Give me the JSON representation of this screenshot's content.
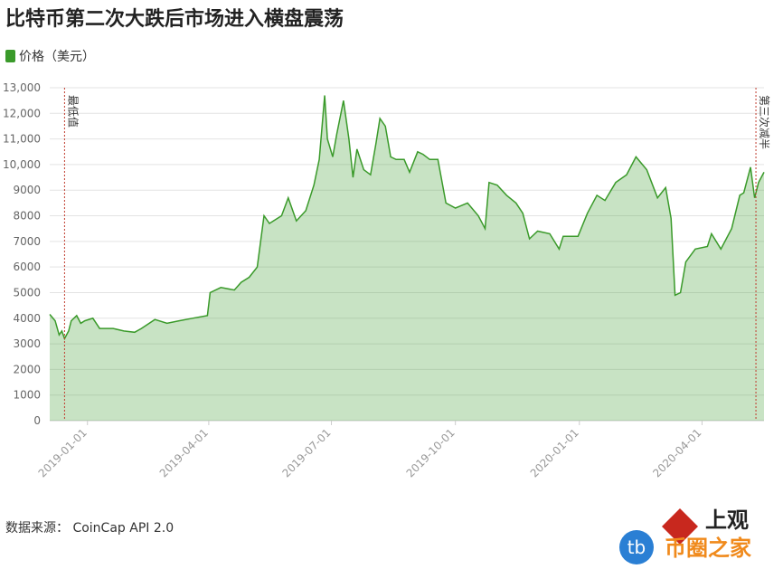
{
  "chart_data": {
    "type": "area",
    "title": "比特币第二次大跌后市场进入横盘震荡",
    "series": [
      {
        "name": "价格（美元）",
        "color": "#3a9a2a",
        "x": [
          "2018-12-04",
          "2018-12-08",
          "2018-12-11",
          "2018-12-13",
          "2018-12-15",
          "2018-12-18",
          "2018-12-20",
          "2018-12-24",
          "2018-12-27",
          "2018-12-30",
          "2019-01-05",
          "2019-01-10",
          "2019-01-20",
          "2019-01-28",
          "2019-02-05",
          "2019-02-10",
          "2019-02-20",
          "2019-03-01",
          "2019-03-10",
          "2019-03-20",
          "2019-03-31",
          "2019-04-02",
          "2019-04-10",
          "2019-04-20",
          "2019-04-25",
          "2019-05-01",
          "2019-05-07",
          "2019-05-12",
          "2019-05-16",
          "2019-05-25",
          "2019-05-30",
          "2019-06-05",
          "2019-06-12",
          "2019-06-18",
          "2019-06-22",
          "2019-06-26",
          "2019-06-28",
          "2019-07-02",
          "2019-07-05",
          "2019-07-10",
          "2019-07-14",
          "2019-07-17",
          "2019-07-20",
          "2019-07-25",
          "2019-07-30",
          "2019-08-03",
          "2019-08-06",
          "2019-08-10",
          "2019-08-14",
          "2019-08-18",
          "2019-08-24",
          "2019-08-28",
          "2019-09-03",
          "2019-09-07",
          "2019-09-12",
          "2019-09-18",
          "2019-09-24",
          "2019-10-01",
          "2019-10-10",
          "2019-10-18",
          "2019-10-23",
          "2019-10-26",
          "2019-11-01",
          "2019-11-08",
          "2019-11-15",
          "2019-11-20",
          "2019-11-25",
          "2019-12-01",
          "2019-12-10",
          "2019-12-17",
          "2019-12-20",
          "2019-12-31",
          "2020-01-07",
          "2020-01-14",
          "2020-01-20",
          "2020-01-28",
          "2020-02-05",
          "2020-02-12",
          "2020-02-20",
          "2020-02-28",
          "2020-03-05",
          "2020-03-09",
          "2020-03-12",
          "2020-03-16",
          "2020-03-20",
          "2020-03-27",
          "2020-04-05",
          "2020-04-08",
          "2020-04-15",
          "2020-04-23",
          "2020-04-29",
          "2020-05-02",
          "2020-05-07",
          "2020-05-10",
          "2020-05-13",
          "2020-05-17"
        ],
        "values": [
          4150,
          3900,
          3350,
          3500,
          3200,
          3500,
          3900,
          4100,
          3800,
          3900,
          4000,
          3600,
          3600,
          3500,
          3450,
          3600,
          3950,
          3800,
          3900,
          4000,
          4100,
          5000,
          5200,
          5100,
          5400,
          5600,
          6000,
          8000,
          7700,
          8000,
          8700,
          7800,
          8200,
          9200,
          10200,
          12700,
          11000,
          10300,
          11200,
          12500,
          11000,
          9500,
          10600,
          9800,
          9600,
          10800,
          11800,
          11500,
          10300,
          10200,
          10200,
          9700,
          10500,
          10400,
          10200,
          10200,
          8500,
          8300,
          8500,
          8000,
          7500,
          9300,
          9200,
          8800,
          8500,
          8100,
          7100,
          7400,
          7300,
          6700,
          7200,
          7200,
          8100,
          8800,
          8600,
          9300,
          9600,
          10300,
          9800,
          8700,
          9100,
          7900,
          4900,
          5000,
          6200,
          6700,
          6800,
          7300,
          6700,
          7500,
          8800,
          8900,
          9900,
          8700,
          9300,
          9700
        ]
      }
    ],
    "xlim": [
      "2018-12-04",
      "2020-05-17"
    ],
    "xticks": [
      "2019-01-01",
      "2019-04-01",
      "2019-07-01",
      "2019-10-01",
      "2020-01-01",
      "2020-04-01"
    ],
    "ylim": [
      0,
      13000
    ],
    "yticks": [
      0,
      1000,
      2000,
      3000,
      4000,
      5000,
      6000,
      7000,
      8000,
      9000,
      {
        "value": 10000,
        "label": "10,000"
      },
      {
        "value": 11000,
        "label": "11,000"
      },
      {
        "value": 12000,
        "label": "12,000"
      },
      {
        "value": 13000,
        "label": "13,000"
      }
    ],
    "grid": true,
    "annotations": [
      {
        "x": "2018-12-15",
        "text": "最低值"
      },
      {
        "x": "2020-05-11",
        "text": "第三次减半"
      }
    ],
    "source": "数据来源： CoinCap API 2.0"
  },
  "watermark": {
    "brand": "上观",
    "site": "币圈之家",
    "badge": "tb"
  }
}
